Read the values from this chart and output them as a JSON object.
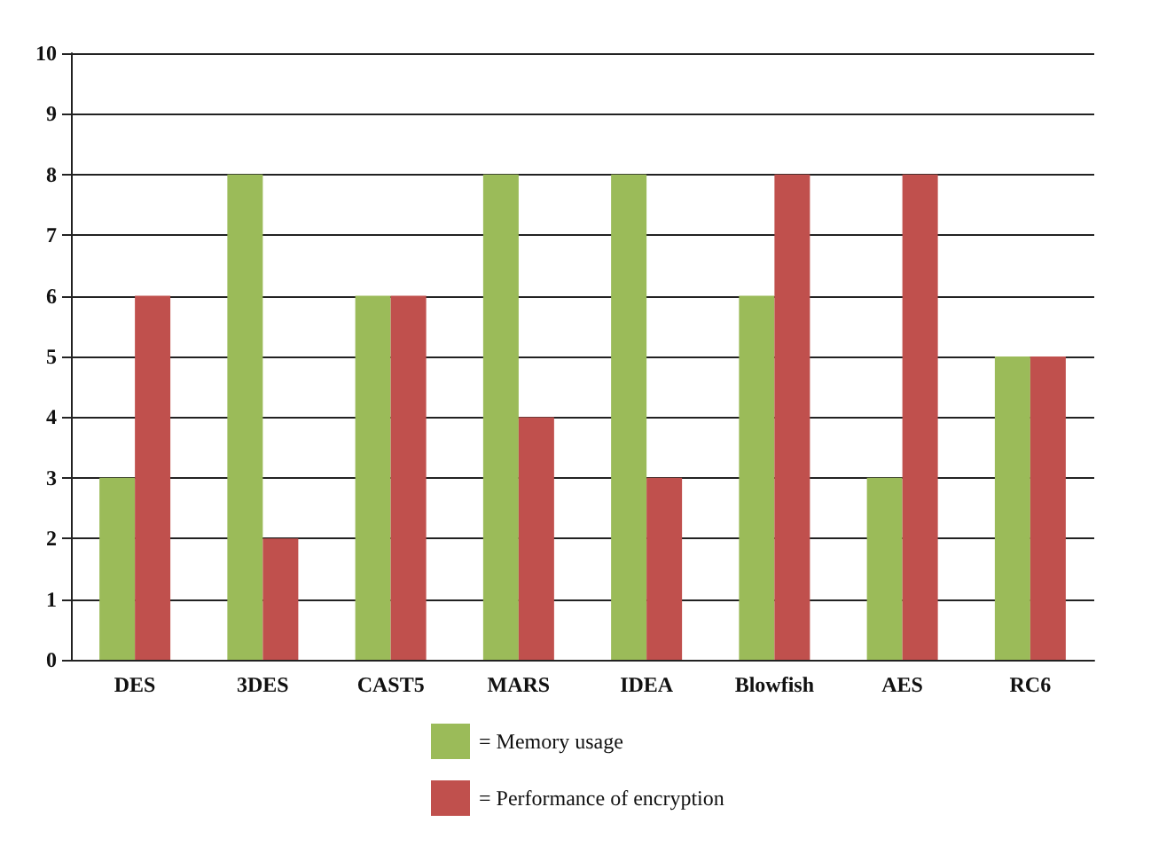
{
  "chart_data": {
    "type": "bar",
    "categories": [
      "DES",
      "3DES",
      "CAST5",
      "MARS",
      "IDEA",
      "Blowfish",
      "AES",
      "RC6"
    ],
    "series": [
      {
        "name": "= Memory usage",
        "color": "#9bbb59",
        "values": [
          3,
          8,
          6,
          8,
          8,
          6,
          3,
          5
        ]
      },
      {
        "name": "= Performance of encryption",
        "color": "#c0504d",
        "values": [
          6,
          2,
          6,
          4,
          3,
          8,
          8,
          5
        ]
      }
    ],
    "ylim": [
      0,
      10
    ],
    "yticks": [
      0,
      1,
      2,
      3,
      4,
      5,
      6,
      7,
      8,
      9,
      10
    ],
    "grid": "y",
    "legend": "bottom"
  }
}
